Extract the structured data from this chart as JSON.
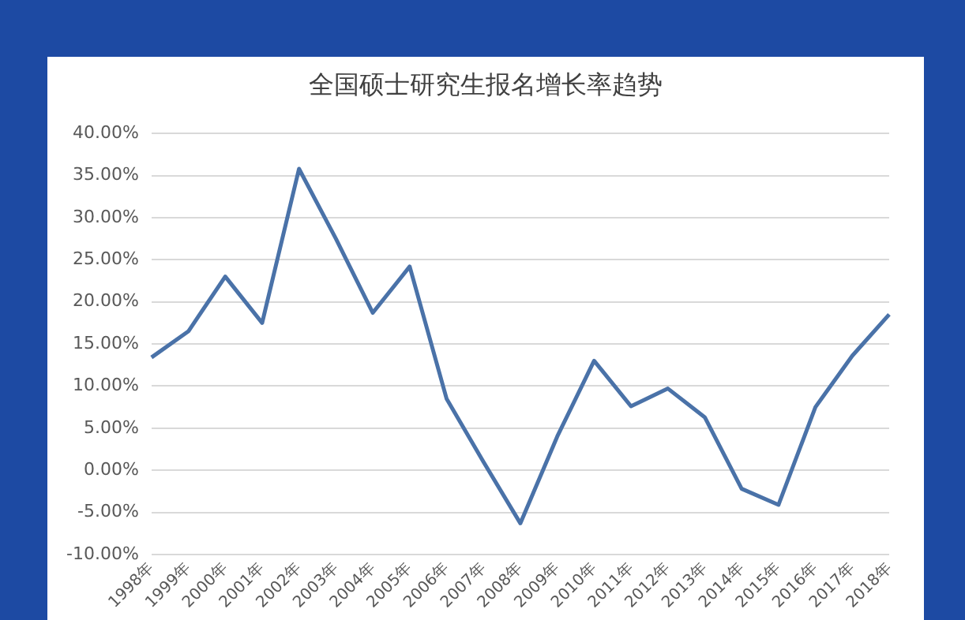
{
  "chart_data": {
    "type": "line",
    "title": "全国硕士研究生报名增长率趋势",
    "categories": [
      "1998年",
      "1999年",
      "2000年",
      "2001年",
      "2002年",
      "2003年",
      "2004年",
      "2005年",
      "2006年",
      "2007年",
      "2008年",
      "2009年",
      "2010年",
      "2011年",
      "2012年",
      "2013年",
      "2014年",
      "2015年",
      "2016年",
      "2017年",
      "2018年"
    ],
    "series": [
      {
        "color": "#4a72a8",
        "values": [
          13.4,
          16.5,
          23.0,
          17.5,
          35.8,
          27.5,
          18.7,
          24.2,
          8.5,
          1.0,
          -6.3,
          4.0,
          13.0,
          7.6,
          9.7,
          6.3,
          -2.2,
          -4.1,
          7.5,
          13.6,
          18.5
        ]
      }
    ],
    "ylim": [
      -10,
      40
    ],
    "yticks": [
      {
        "value": -10,
        "label": "-10.00%"
      },
      {
        "value": -5,
        "label": "-5.00%"
      },
      {
        "value": 0,
        "label": "0.00%"
      },
      {
        "value": 5,
        "label": "5.00%"
      },
      {
        "value": 10,
        "label": "10.00%"
      },
      {
        "value": 15,
        "label": "15.00%"
      },
      {
        "value": 20,
        "label": "20.00%"
      },
      {
        "value": 25,
        "label": "25.00%"
      },
      {
        "value": 30,
        "label": "30.00%"
      },
      {
        "value": 35,
        "label": "35.00%"
      },
      {
        "value": 40,
        "label": "40.00%"
      }
    ],
    "grid": "y",
    "legend": false,
    "marker": "none",
    "line_style": "solid"
  }
}
